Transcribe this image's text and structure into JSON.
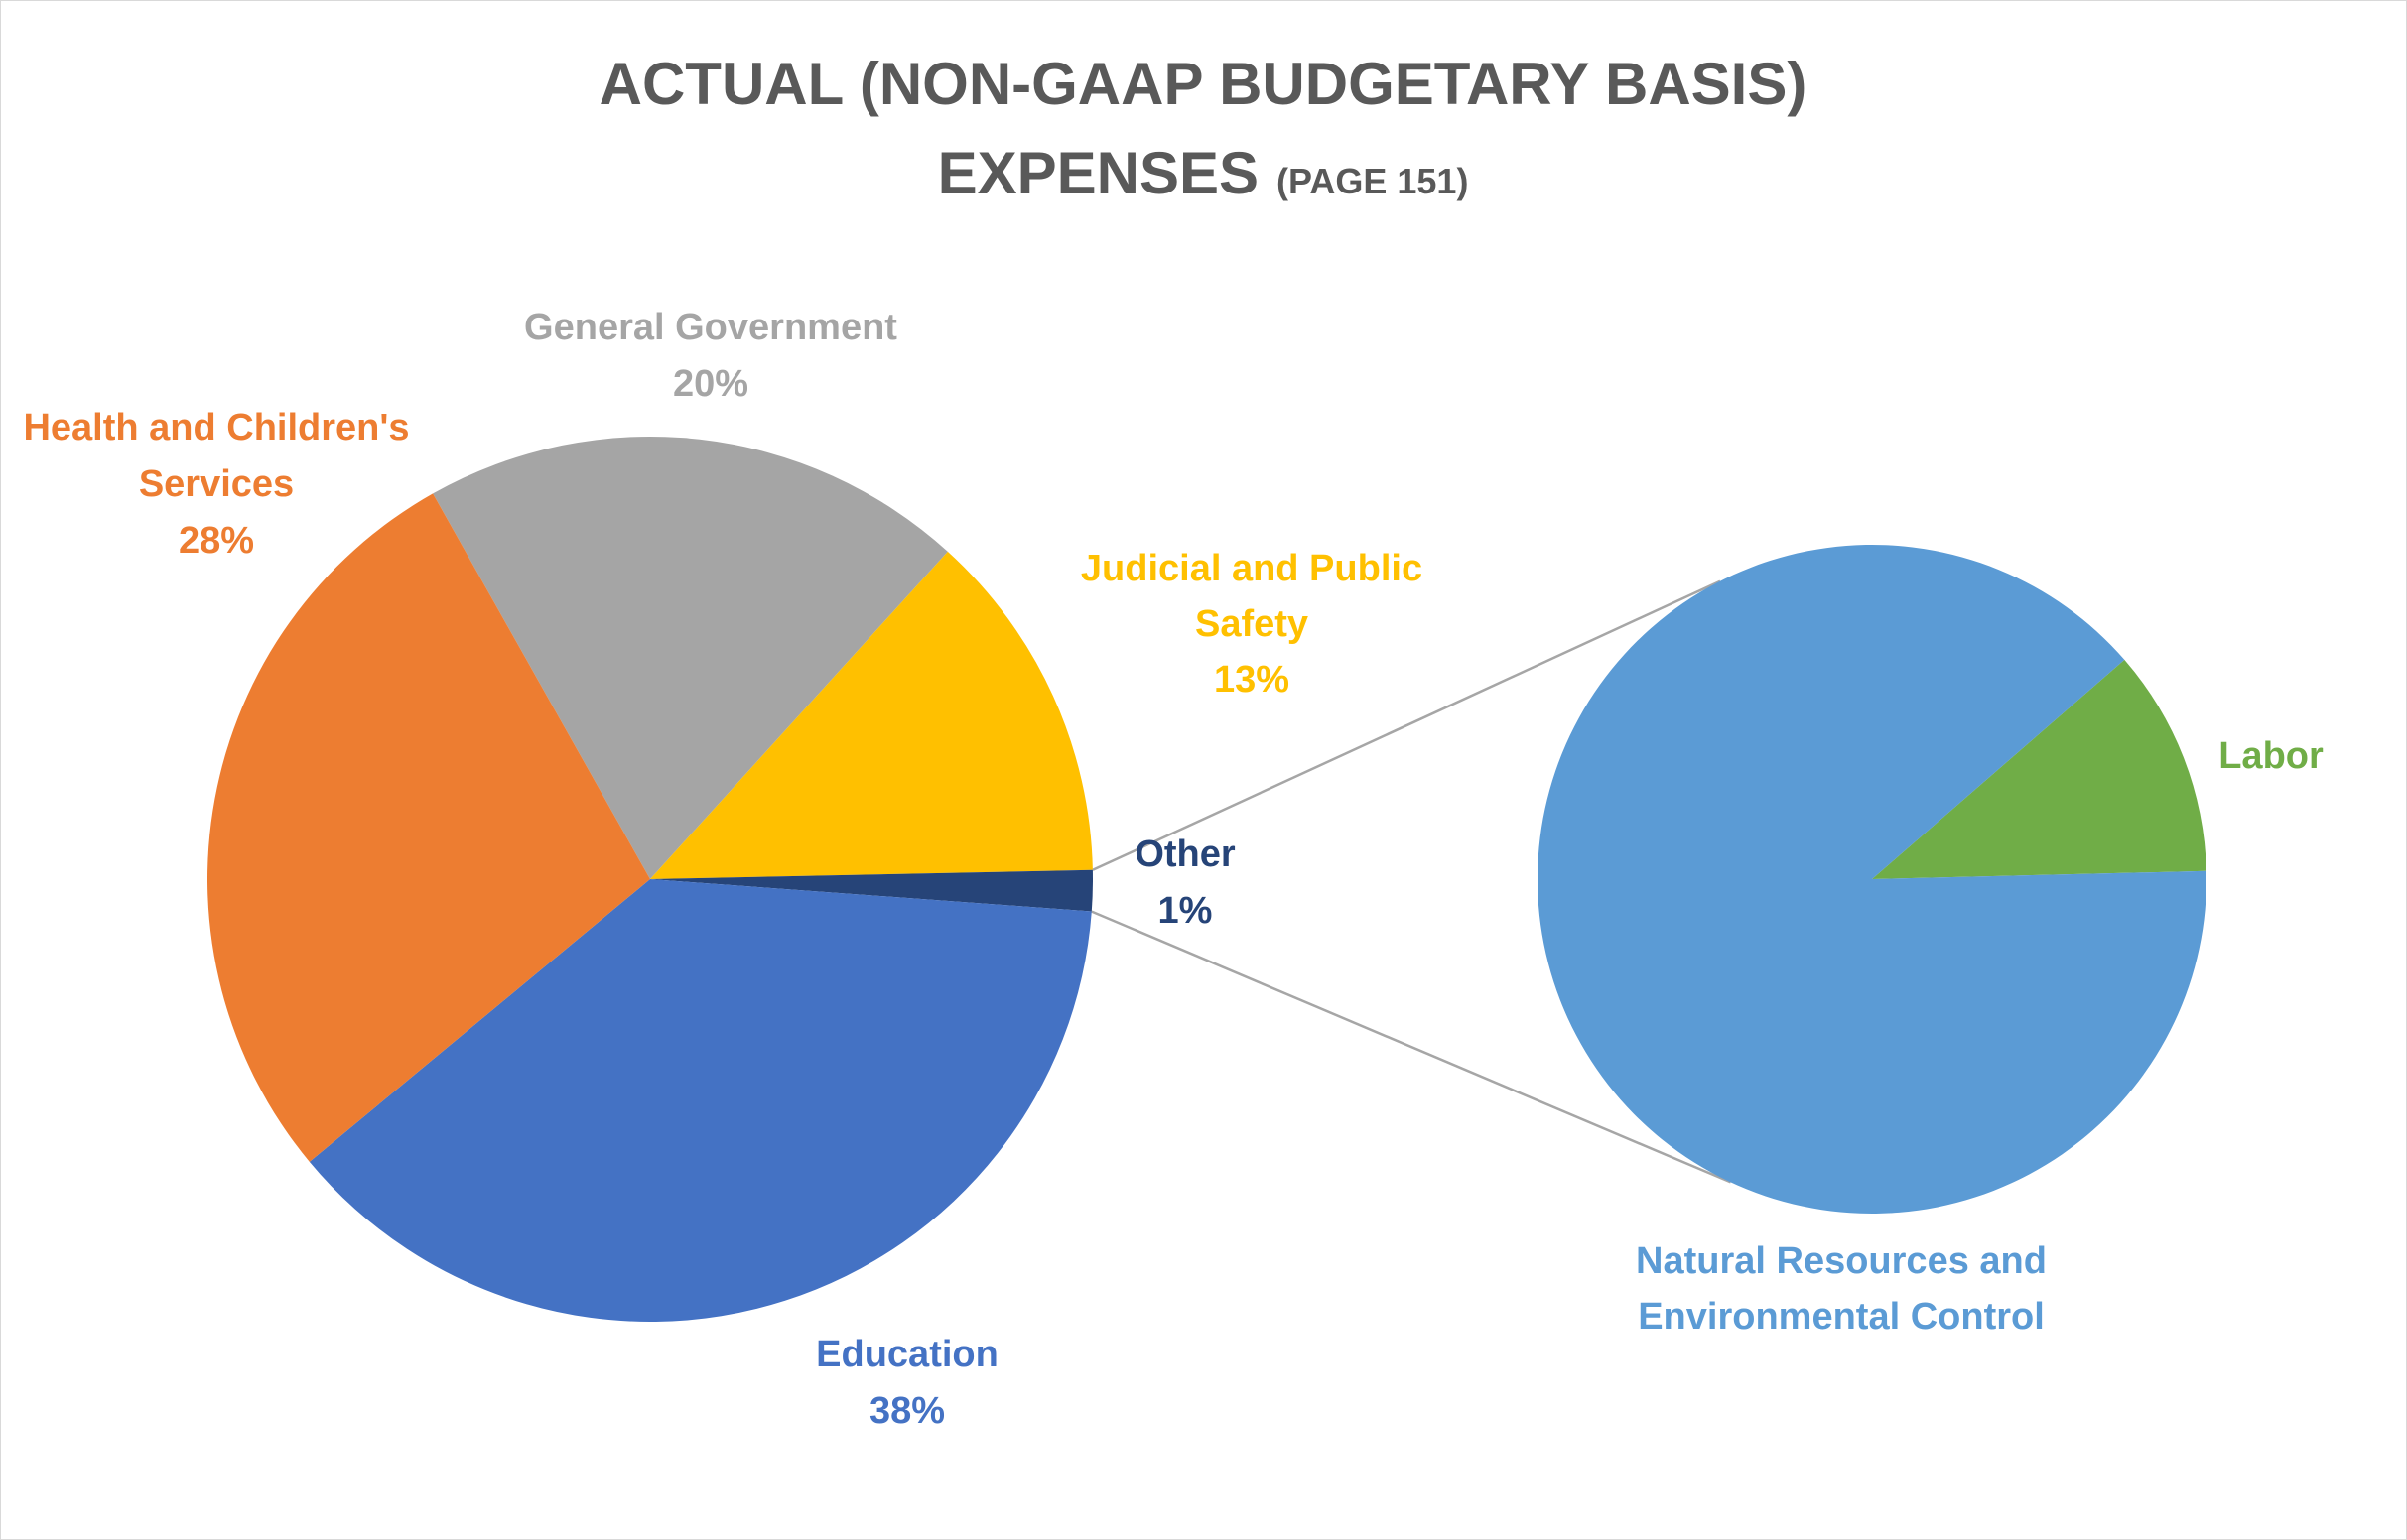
{
  "chart_data": {
    "type": "pie",
    "subtype": "pie-of-pie",
    "title_line1": "ACTUAL (NON-GAAP BUDGETARY BASIS)",
    "title_line2_main": "EXPENSES",
    "title_line2_note": "(PAGE 151)",
    "main_pie": {
      "slices": [
        {
          "name": "General Government",
          "label": "General Government",
          "percent_label": "20%",
          "value": 20,
          "color": "#a5a5a5"
        },
        {
          "name": "Judicial and Public Safety",
          "label_line1": "Judicial and Public",
          "label_line2": "Safety",
          "percent_label": "13%",
          "value": 13,
          "color": "#ffc000"
        },
        {
          "name": "Other",
          "label": "Other",
          "percent_label": "1%",
          "value": 1.5,
          "color": "#264478"
        },
        {
          "name": "Education",
          "label": "Education",
          "percent_label": "38%",
          "value": 38,
          "color": "#4472c4"
        },
        {
          "name": "Health and Children's Services",
          "label_line1": "Health and Children's",
          "label_line2": "Services",
          "percent_label": "28%",
          "value": 28,
          "color": "#ed7d31"
        }
      ]
    },
    "secondary_pie": {
      "slices": [
        {
          "name": "Labor",
          "label": "Labor",
          "value": 11,
          "color": "#70ad47"
        },
        {
          "name": "Natural Resources and Environmental Control",
          "label_line1": "Natural Resources and",
          "label_line2": "Environmental Control",
          "value": 89,
          "color": "#5b9bd5"
        }
      ]
    },
    "connector_color": "#a6a6a6",
    "title_color": "#595959"
  }
}
